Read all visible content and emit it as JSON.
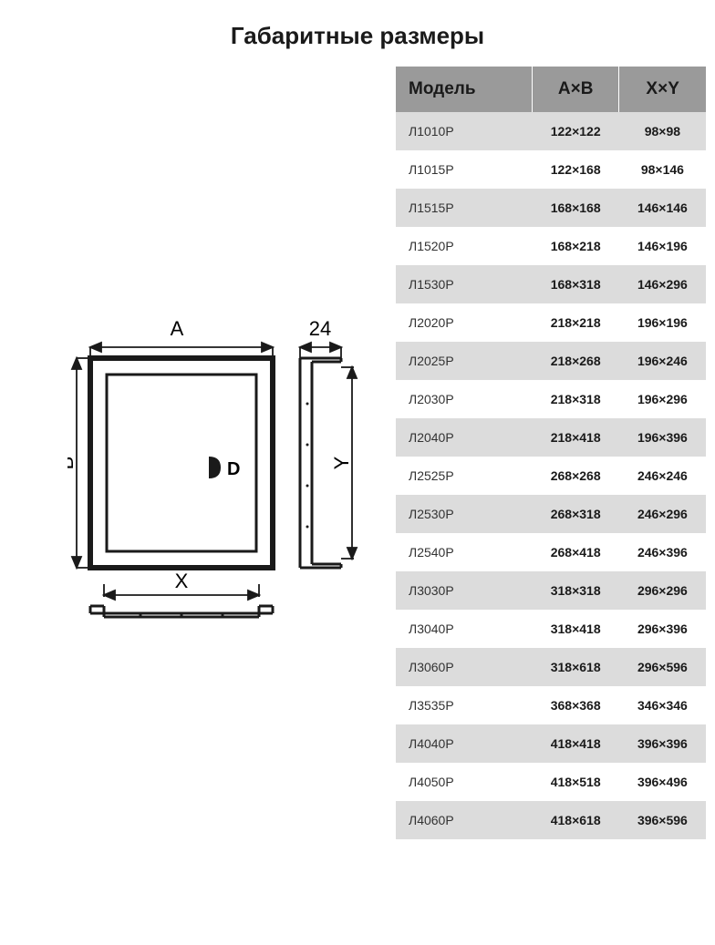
{
  "title": "Габаритные размеры",
  "table": {
    "headers": {
      "model": "Модель",
      "ab": "A×B",
      "xy": "X×Y"
    },
    "header_bg": "#9a9a9a",
    "row_bg_odd": "#dcdcdc",
    "row_bg_even": "#ffffff",
    "rows": [
      {
        "model": "Л1010Р",
        "ab": "122×122",
        "xy": "98×98"
      },
      {
        "model": "Л1015Р",
        "ab": "122×168",
        "xy": "98×146"
      },
      {
        "model": "Л1515Р",
        "ab": "168×168",
        "xy": "146×146"
      },
      {
        "model": "Л1520Р",
        "ab": "168×218",
        "xy": "146×196"
      },
      {
        "model": "Л1530Р",
        "ab": "168×318",
        "xy": "146×296"
      },
      {
        "model": "Л2020Р",
        "ab": "218×218",
        "xy": "196×196"
      },
      {
        "model": "Л2025Р",
        "ab": "218×268",
        "xy": "196×246"
      },
      {
        "model": "Л2030Р",
        "ab": "218×318",
        "xy": "196×296"
      },
      {
        "model": "Л2040Р",
        "ab": "218×418",
        "xy": "196×396"
      },
      {
        "model": "Л2525Р",
        "ab": "268×268",
        "xy": "246×246"
      },
      {
        "model": "Л2530Р",
        "ab": "268×318",
        "xy": "246×296"
      },
      {
        "model": "Л2540Р",
        "ab": "268×418",
        "xy": "246×396"
      },
      {
        "model": "Л3030Р",
        "ab": "318×318",
        "xy": "296×296"
      },
      {
        "model": "Л3040Р",
        "ab": "318×418",
        "xy": "296×396"
      },
      {
        "model": "Л3060Р",
        "ab": "318×618",
        "xy": "296×596"
      },
      {
        "model": "Л3535Р",
        "ab": "368×368",
        "xy": "346×346"
      },
      {
        "model": "Л4040Р",
        "ab": "418×418",
        "xy": "396×396"
      },
      {
        "model": "Л4050Р",
        "ab": "418×518",
        "xy": "396×496"
      },
      {
        "model": "Л4060Р",
        "ab": "418×618",
        "xy": "396×596"
      }
    ]
  },
  "diagram": {
    "label_A": "A",
    "label_B": "B",
    "label_X": "X",
    "label_Y": "Y",
    "label_depth": "24",
    "label_D": "D",
    "stroke": "#1a1a1a",
    "stroke_width": 4,
    "dim_stroke_width": 1.8,
    "font_size": 22
  }
}
